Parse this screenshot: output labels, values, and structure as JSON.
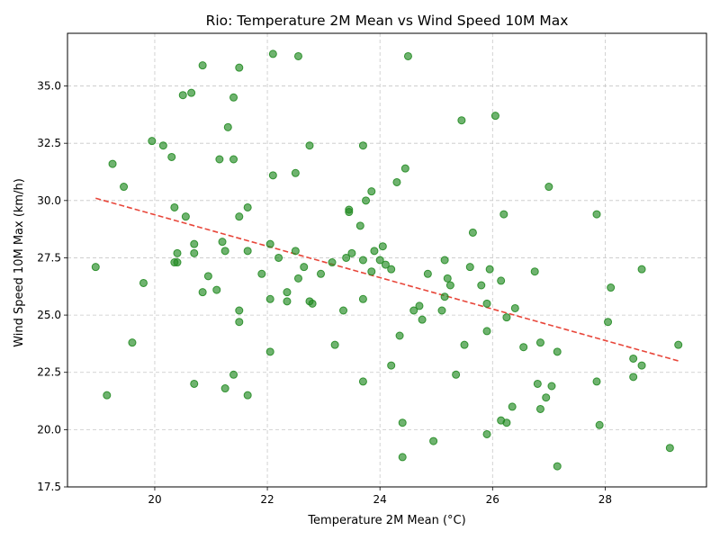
{
  "chart_data": {
    "type": "scatter",
    "title": "Rio: Temperature 2M Mean vs Wind Speed 10M Max",
    "xlabel": "Temperature 2M Mean (°C)",
    "ylabel": "Wind Speed 10M Max (km/h)",
    "xlim": [
      18.45,
      29.8
    ],
    "ylim": [
      17.5,
      37.3
    ],
    "xticks": [
      20,
      22,
      24,
      26,
      28
    ],
    "xtick_labels": [
      "20",
      "22",
      "24",
      "26",
      "28"
    ],
    "yticks": [
      17.5,
      20.0,
      22.5,
      25.0,
      27.5,
      30.0,
      32.5,
      35.0
    ],
    "ytick_labels": [
      "17.5",
      "20.0",
      "22.5",
      "25.0",
      "27.5",
      "30.0",
      "32.5",
      "35.0"
    ],
    "grid": true,
    "point_color": "#228b22",
    "trend_color": "#e8463a",
    "trendline": {
      "x": [
        18.95,
        29.3
      ],
      "y": [
        30.1,
        23.0
      ]
    },
    "points": [
      [
        20.85,
        35.9
      ],
      [
        22.1,
        36.4
      ],
      [
        22.55,
        36.3
      ],
      [
        24.5,
        36.3
      ],
      [
        21.5,
        35.8
      ],
      [
        20.5,
        34.6
      ],
      [
        20.65,
        34.7
      ],
      [
        21.4,
        34.5
      ],
      [
        25.45,
        33.5
      ],
      [
        26.05,
        33.7
      ],
      [
        21.3,
        33.2
      ],
      [
        19.95,
        32.6
      ],
      [
        20.15,
        32.4
      ],
      [
        22.75,
        32.4
      ],
      [
        23.7,
        32.4
      ],
      [
        19.25,
        31.6
      ],
      [
        20.3,
        31.9
      ],
      [
        21.15,
        31.8
      ],
      [
        21.4,
        31.8
      ],
      [
        24.45,
        31.4
      ],
      [
        22.1,
        31.1
      ],
      [
        22.5,
        31.2
      ],
      [
        19.45,
        30.6
      ],
      [
        24.3,
        30.8
      ],
      [
        27.0,
        30.6
      ],
      [
        23.85,
        30.4
      ],
      [
        23.75,
        30.0
      ],
      [
        20.35,
        29.7
      ],
      [
        20.55,
        29.3
      ],
      [
        21.5,
        29.3
      ],
      [
        21.65,
        29.7
      ],
      [
        23.45,
        29.6
      ],
      [
        23.45,
        29.5
      ],
      [
        23.65,
        28.9
      ],
      [
        26.2,
        29.4
      ],
      [
        27.85,
        29.4
      ],
      [
        20.7,
        28.1
      ],
      [
        21.2,
        28.2
      ],
      [
        22.05,
        28.1
      ],
      [
        25.65,
        28.6
      ],
      [
        24.05,
        28.0
      ],
      [
        20.4,
        27.7
      ],
      [
        20.7,
        27.7
      ],
      [
        21.25,
        27.8
      ],
      [
        21.65,
        27.8
      ],
      [
        22.5,
        27.8
      ],
      [
        23.5,
        27.7
      ],
      [
        23.9,
        27.8
      ],
      [
        20.35,
        27.3
      ],
      [
        20.4,
        27.3
      ],
      [
        22.2,
        27.5
      ],
      [
        23.15,
        27.3
      ],
      [
        23.4,
        27.5
      ],
      [
        23.7,
        27.4
      ],
      [
        24.0,
        27.4
      ],
      [
        24.1,
        27.2
      ],
      [
        25.15,
        27.4
      ],
      [
        18.95,
        27.1
      ],
      [
        22.65,
        27.1
      ],
      [
        24.2,
        27.0
      ],
      [
        25.6,
        27.1
      ],
      [
        25.95,
        27.0
      ],
      [
        26.75,
        26.9
      ],
      [
        28.65,
        27.0
      ],
      [
        20.95,
        26.7
      ],
      [
        21.9,
        26.8
      ],
      [
        22.95,
        26.8
      ],
      [
        23.85,
        26.9
      ],
      [
        24.85,
        26.8
      ],
      [
        25.2,
        26.6
      ],
      [
        26.15,
        26.5
      ],
      [
        19.8,
        26.4
      ],
      [
        22.55,
        26.6
      ],
      [
        25.25,
        26.3
      ],
      [
        25.8,
        26.3
      ],
      [
        28.1,
        26.2
      ],
      [
        20.85,
        26.0
      ],
      [
        21.1,
        26.1
      ],
      [
        22.35,
        26.0
      ],
      [
        22.05,
        25.7
      ],
      [
        22.35,
        25.6
      ],
      [
        22.75,
        25.6
      ],
      [
        22.8,
        25.5
      ],
      [
        23.7,
        25.7
      ],
      [
        25.15,
        25.8
      ],
      [
        25.9,
        25.5
      ],
      [
        21.5,
        25.2
      ],
      [
        23.35,
        25.2
      ],
      [
        24.6,
        25.2
      ],
      [
        24.7,
        25.4
      ],
      [
        25.1,
        25.2
      ],
      [
        26.4,
        25.3
      ],
      [
        21.5,
        24.7
      ],
      [
        24.75,
        24.8
      ],
      [
        26.25,
        24.9
      ],
      [
        28.05,
        24.7
      ],
      [
        24.35,
        24.1
      ],
      [
        25.9,
        24.3
      ],
      [
        19.6,
        23.8
      ],
      [
        23.2,
        23.7
      ],
      [
        25.5,
        23.7
      ],
      [
        26.55,
        23.6
      ],
      [
        26.85,
        23.8
      ],
      [
        29.3,
        23.7
      ],
      [
        22.05,
        23.4
      ],
      [
        27.15,
        23.4
      ],
      [
        24.2,
        22.8
      ],
      [
        28.5,
        23.1
      ],
      [
        28.65,
        22.8
      ],
      [
        21.4,
        22.4
      ],
      [
        25.35,
        22.4
      ],
      [
        28.5,
        22.3
      ],
      [
        20.7,
        22.0
      ],
      [
        23.7,
        22.1
      ],
      [
        26.8,
        22.0
      ],
      [
        27.05,
        21.9
      ],
      [
        27.85,
        22.1
      ],
      [
        19.15,
        21.5
      ],
      [
        21.25,
        21.8
      ],
      [
        21.65,
        21.5
      ],
      [
        26.35,
        21.0
      ],
      [
        26.95,
        21.4
      ],
      [
        26.85,
        20.9
      ],
      [
        24.4,
        20.3
      ],
      [
        26.15,
        20.4
      ],
      [
        26.25,
        20.3
      ],
      [
        27.9,
        20.2
      ],
      [
        25.9,
        19.8
      ],
      [
        24.95,
        19.5
      ],
      [
        29.15,
        19.2
      ],
      [
        24.4,
        18.8
      ],
      [
        27.15,
        18.4
      ]
    ]
  }
}
